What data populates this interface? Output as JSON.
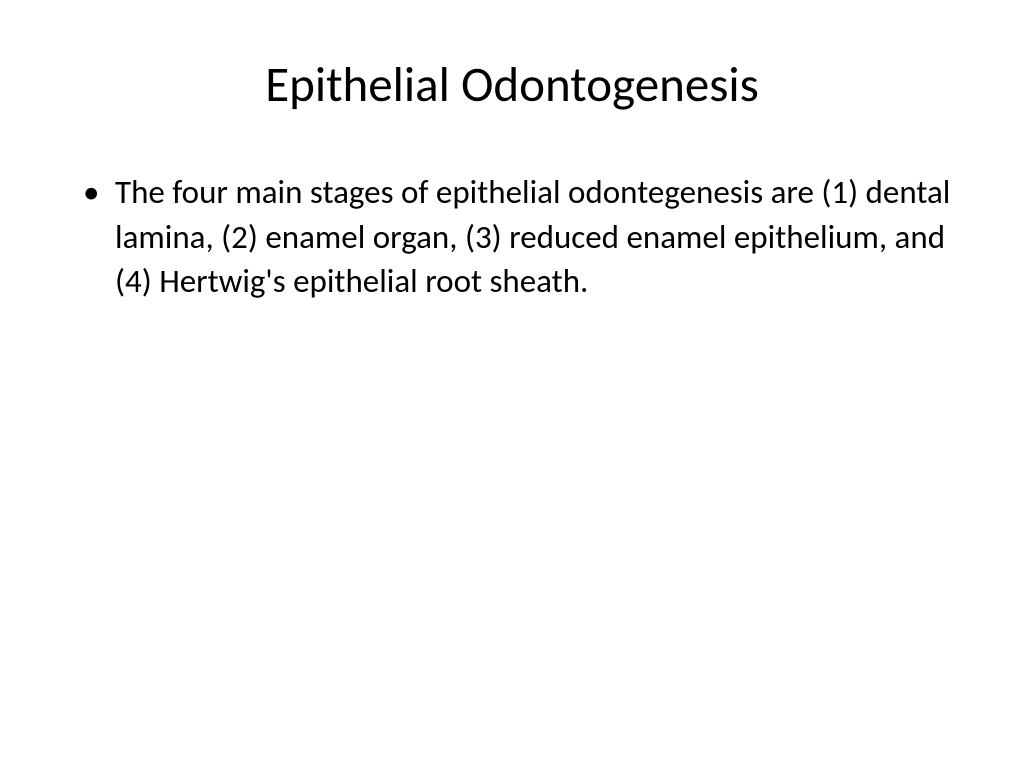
{
  "slide": {
    "title": "Epithelial Odontogenesis",
    "bullets": [
      "The four main stages of epithelial odontegenesis are (1) dental lamina, (2) enamel organ, (3) reduced enamel epithelium, and (4) Hertwig's epithelial root sheath."
    ],
    "styling": {
      "background_color": "#ffffff",
      "text_color": "#000000",
      "title_fontsize": 49,
      "title_fontweight": 400,
      "body_fontsize": 33,
      "line_height": 1.35,
      "font_family": "Calibri"
    }
  }
}
